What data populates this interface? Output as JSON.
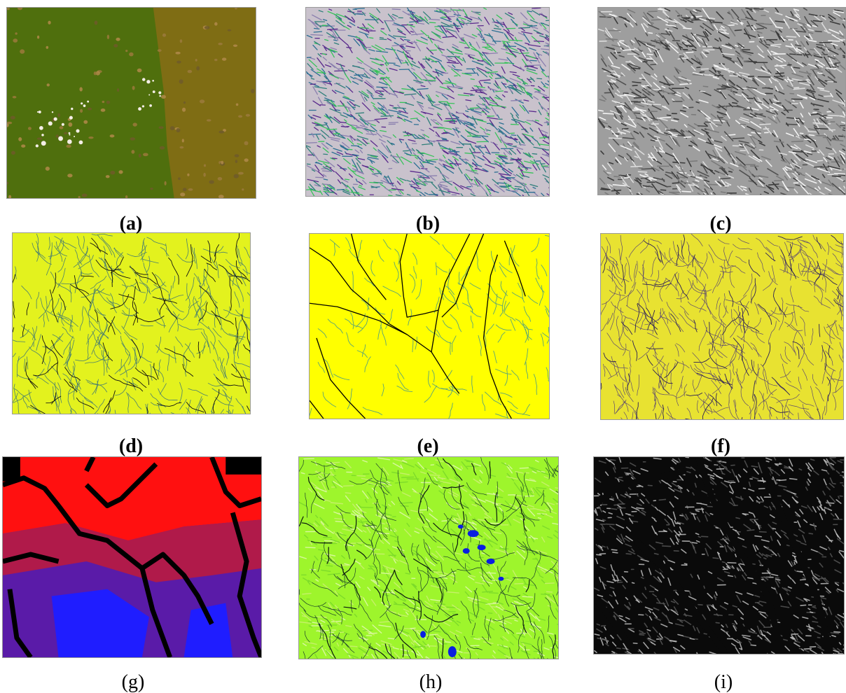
{
  "panels": [
    {
      "id": "a",
      "caption": "(a)",
      "caption_bold": true,
      "description": "colour-shaded digital elevation model",
      "colors": {
        "base": "#4f6f0d",
        "east": "#7f6d14",
        "peak": "#f4eee6",
        "relief": "#9b7a3c"
      }
    },
    {
      "id": "b",
      "caption": "(b)",
      "caption_bold": true,
      "description": "aspect / slope rendering",
      "colors": {
        "base": "#c9c2cc",
        "streak1": "#2f7f7a",
        "streak2": "#5a2a8c",
        "streak3": "#37c25a"
      }
    },
    {
      "id": "c",
      "caption": "(c)",
      "caption_bold": true,
      "description": "grey hillshade",
      "colors": {
        "base": "#9e9e9e",
        "light": "#dcdcdc",
        "dark": "#3c3c3c"
      }
    },
    {
      "id": "d",
      "caption": "(d)",
      "caption_bold": true,
      "description": "dense drainage network",
      "colors": {
        "base": "#e3f21e",
        "stream": "#4a7f70",
        "main": "#101010"
      }
    },
    {
      "id": "e",
      "caption": "(e)",
      "caption_bold": true,
      "description": "main channel network",
      "colors": {
        "base": "#ffff00",
        "stream": "#58a37a",
        "main": "#000000"
      }
    },
    {
      "id": "f",
      "caption": "(f)",
      "caption_bold": true,
      "description": "flow accumulation network",
      "colors": {
        "base": "#e8e231",
        "stream": "#5d4a6f",
        "main": "#2b1f55"
      }
    },
    {
      "id": "g",
      "caption": "(g)",
      "caption_bold": false,
      "description": "watershed zones",
      "colors": {
        "top": "#ff1010",
        "mid": "#b01a4a",
        "low": "#5a1ba8",
        "blue": "#1f1dff",
        "channel": "#000000"
      }
    },
    {
      "id": "h",
      "caption": "(h)",
      "caption_bold": false,
      "description": "wetness index with water bodies",
      "colors": {
        "base": "#9ef52c",
        "light": "#d8f79e",
        "stream": "#1a3f2a",
        "water": "#0a1fe0"
      }
    },
    {
      "id": "i",
      "caption": "(i)",
      "caption_bold": false,
      "description": "distance-to-channel grey map",
      "colors": {
        "base": "#0a0a0a",
        "ridge": "#c8c8c8",
        "mid": "#5a5a5a"
      }
    }
  ]
}
